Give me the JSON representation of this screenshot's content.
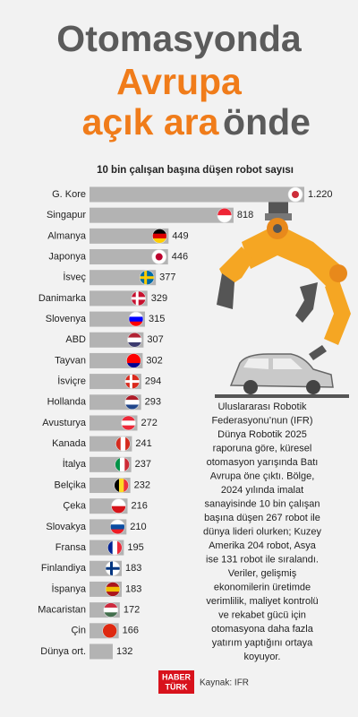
{
  "chart_data": {
    "type": "bar",
    "orientation": "horizontal",
    "title": [
      {
        "text": "Otomasyonda",
        "color": "#5b5b5b"
      },
      {
        "text": "Avrupa",
        "color": "#f07c1a"
      },
      {
        "text": "açık ara",
        "color": "#f07c1a"
      },
      {
        "text": "önde",
        "color": "#5b5b5b"
      }
    ],
    "subtitle": "10 bin çalışan başına düşen robot sayısı",
    "categories": [
      "G. Kore",
      "Singapur",
      "Almanya",
      "Japonya",
      "İsveç",
      "Danimarka",
      "Slovenya",
      "ABD",
      "Tayvan",
      "İsviçre",
      "Hollanda",
      "Avusturya",
      "Kanada",
      "İtalya",
      "Belçika",
      "Çeka",
      "Slovakya",
      "Fransa",
      "Finlandiya",
      "İspanya",
      "Macaristan",
      "Çin",
      "Dünya ort."
    ],
    "values": [
      1220,
      818,
      449,
      446,
      377,
      329,
      315,
      307,
      302,
      294,
      293,
      272,
      241,
      237,
      232,
      216,
      210,
      195,
      183,
      183,
      172,
      166,
      132
    ],
    "value_labels": [
      "1.220",
      "818",
      "449",
      "446",
      "377",
      "329",
      "315",
      "307",
      "302",
      "294",
      "293",
      "272",
      "241",
      "237",
      "232",
      "216",
      "210",
      "195",
      "183",
      "183",
      "172",
      "166",
      "132"
    ],
    "color": "#b3b3b3",
    "annotations": [
      "Uluslararası Robotik",
      "Federasyonu’nun (IFR)",
      "Dünya Robotik 2025",
      "raporuna göre, küresel",
      "otomasyon yarışında Batı",
      "Avrupa öne çıktı. Bölge,",
      "2024 yılında imalat",
      "sanayisinde 10 bin çalışan",
      "başına düşen 267 robot ile",
      "dünya lideri olurken; Kuzey",
      "Amerika 204 robot, Asya",
      "ise 131 robot ile sıralandı.",
      "Veriler, gelişmiş",
      "ekonomilerin üretimde",
      "verimlilik, maliyet kontrolü",
      "ve rekabet gücü için",
      "otomasyona daha fazla",
      "yatırım yaptığını ortaya",
      "koyuyor."
    ],
    "logo": [
      "HABER",
      "TÜRK"
    ],
    "source": "Kaynak: IFR"
  }
}
